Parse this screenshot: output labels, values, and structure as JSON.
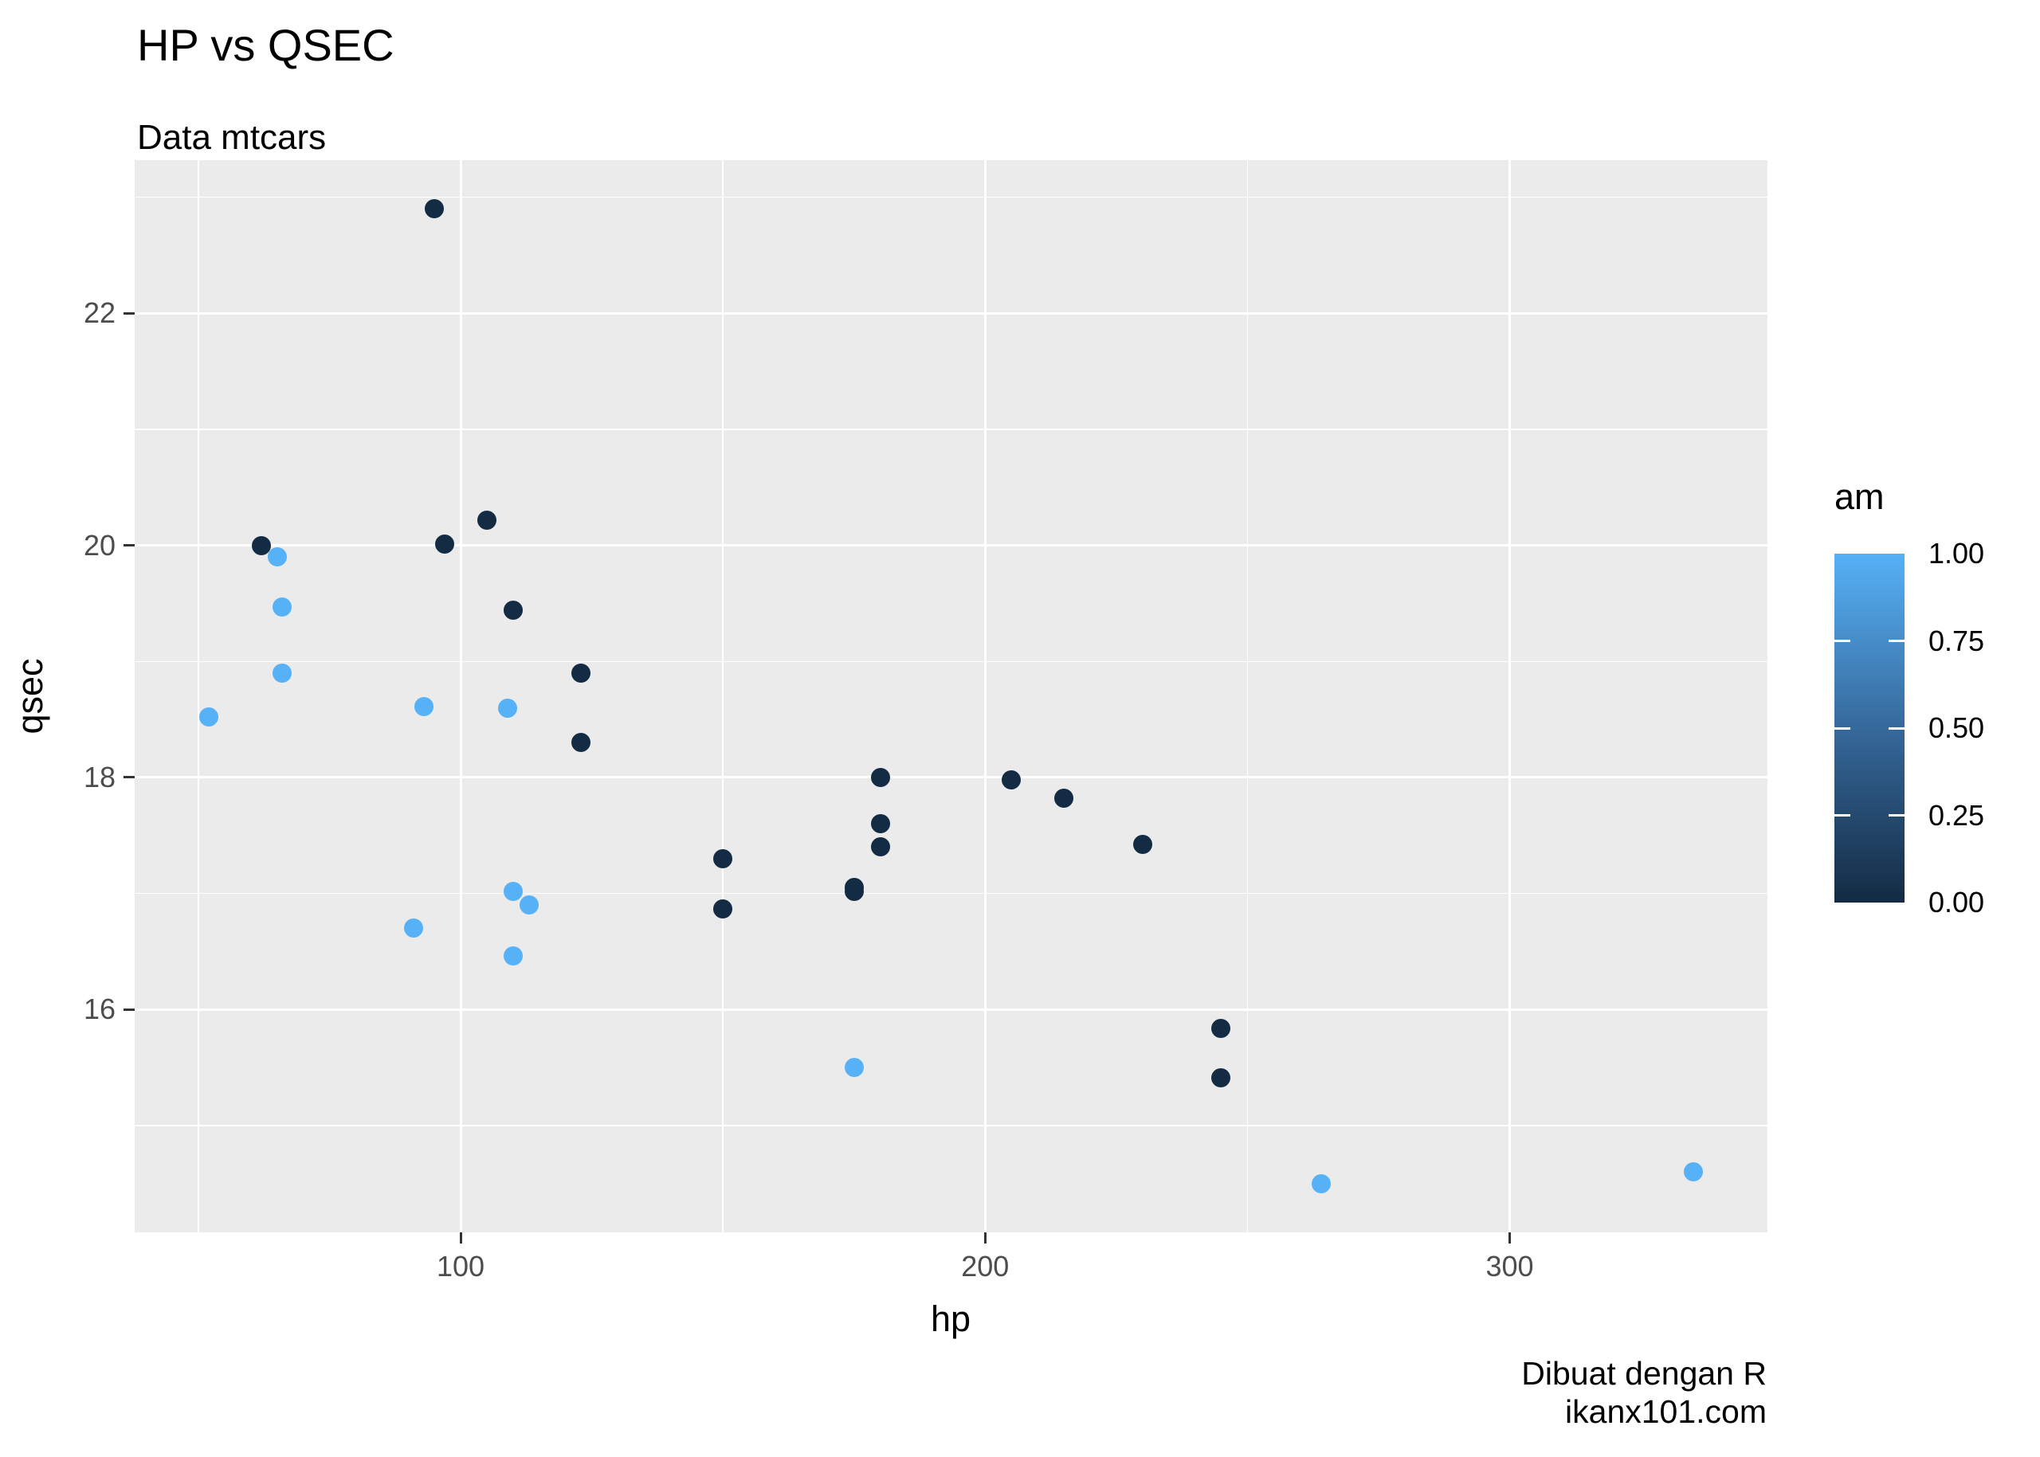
{
  "title": "HP vs QSEC",
  "subtitle": "Data mtcars",
  "caption": {
    "line1": "Dibuat dengan R",
    "line2": "ikanx101.com"
  },
  "colors": {
    "panel_background": "#EBEBEB",
    "gridline": "#FFFFFF",
    "tick_label": "#4D4D4D",
    "tick_mark": "#333333",
    "point_low": "#132B43",
    "point_high": "#56B1F7"
  },
  "chart_data": {
    "type": "scatter",
    "title": "HP vs QSEC",
    "subtitle": "Data mtcars",
    "xlabel": "hp",
    "ylabel": "qsec",
    "xlim": [
      37.85,
      349.15
    ],
    "ylim": [
      14.08,
      23.32
    ],
    "grid": "on (white major+minor on gray panel)",
    "x_ticks": {
      "major": [
        100,
        200,
        300
      ],
      "labels": [
        "100",
        "200",
        "300"
      ],
      "minor": [
        50,
        150,
        250
      ]
    },
    "y_ticks": {
      "major": [
        16,
        18,
        20,
        22
      ],
      "labels": [
        "16",
        "18",
        "20",
        "22"
      ],
      "minor": [
        15,
        17,
        19,
        21,
        23
      ]
    },
    "legend": {
      "title": "am",
      "position": "right",
      "type": "colorbar",
      "low_value": 0,
      "high_value": 1,
      "low_color": "#132B43",
      "high_color": "#56B1F7",
      "labels": [
        "1.00",
        "0.75",
        "0.50",
        "0.25",
        "0.00"
      ],
      "label_values": [
        1.0,
        0.75,
        0.5,
        0.25,
        0.0
      ],
      "bar_tick_values": [
        0.75,
        0.5,
        0.25
      ]
    },
    "series_color_variable": "am",
    "points": [
      {
        "hp": 110,
        "qsec": 16.46,
        "am": 1
      },
      {
        "hp": 110,
        "qsec": 17.02,
        "am": 1
      },
      {
        "hp": 93,
        "qsec": 18.61,
        "am": 1
      },
      {
        "hp": 110,
        "qsec": 19.44,
        "am": 0
      },
      {
        "hp": 175,
        "qsec": 17.02,
        "am": 0
      },
      {
        "hp": 105,
        "qsec": 20.22,
        "am": 0
      },
      {
        "hp": 245,
        "qsec": 15.84,
        "am": 0
      },
      {
        "hp": 62,
        "qsec": 20.0,
        "am": 0
      },
      {
        "hp": 95,
        "qsec": 22.9,
        "am": 0
      },
      {
        "hp": 123,
        "qsec": 18.3,
        "am": 0
      },
      {
        "hp": 123,
        "qsec": 18.9,
        "am": 0
      },
      {
        "hp": 180,
        "qsec": 17.4,
        "am": 0
      },
      {
        "hp": 180,
        "qsec": 17.6,
        "am": 0
      },
      {
        "hp": 180,
        "qsec": 18.0,
        "am": 0
      },
      {
        "hp": 205,
        "qsec": 17.98,
        "am": 0
      },
      {
        "hp": 215,
        "qsec": 17.82,
        "am": 0
      },
      {
        "hp": 230,
        "qsec": 17.42,
        "am": 0
      },
      {
        "hp": 66,
        "qsec": 19.47,
        "am": 1
      },
      {
        "hp": 52,
        "qsec": 18.52,
        "am": 1
      },
      {
        "hp": 65,
        "qsec": 19.9,
        "am": 1
      },
      {
        "hp": 97,
        "qsec": 20.01,
        "am": 0
      },
      {
        "hp": 150,
        "qsec": 16.87,
        "am": 0
      },
      {
        "hp": 150,
        "qsec": 17.3,
        "am": 0
      },
      {
        "hp": 245,
        "qsec": 15.41,
        "am": 0
      },
      {
        "hp": 175,
        "qsec": 17.05,
        "am": 0
      },
      {
        "hp": 66,
        "qsec": 18.9,
        "am": 1
      },
      {
        "hp": 91,
        "qsec": 16.7,
        "am": 1
      },
      {
        "hp": 113,
        "qsec": 16.9,
        "am": 1
      },
      {
        "hp": 264,
        "qsec": 14.5,
        "am": 1
      },
      {
        "hp": 175,
        "qsec": 15.5,
        "am": 1
      },
      {
        "hp": 335,
        "qsec": 14.6,
        "am": 1
      },
      {
        "hp": 109,
        "qsec": 18.6,
        "am": 1
      }
    ]
  }
}
